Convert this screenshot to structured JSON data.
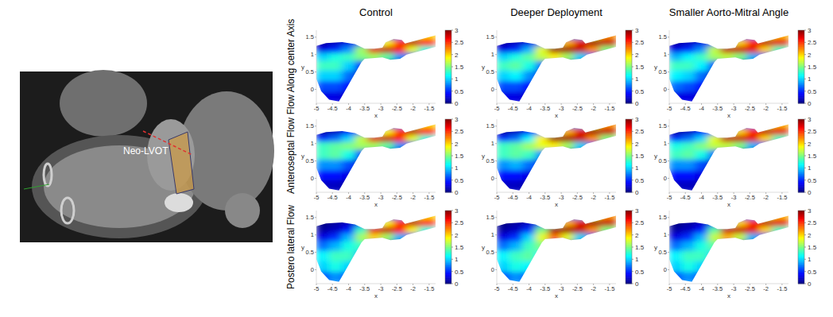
{
  "figure": {
    "image_label": "Neo-LVOT",
    "column_titles": [
      "Control",
      "Deeper Deployment",
      "Smaller Aorto-Mitral Angle"
    ],
    "row_titles": [
      "Flow Along center Axis",
      "Anteroseptal Flow",
      "Postero lateral Flow"
    ]
  },
  "chart_data": [
    {
      "type": "heatmap",
      "x_label": "x",
      "y_label": "y",
      "xlim": [
        -5,
        -1.3
      ],
      "ylim": [
        -0.4,
        1.7
      ],
      "xticks": [
        -5,
        -4.5,
        -4,
        -3.5,
        -3,
        -2.5,
        -2,
        -1.5
      ],
      "yticks": [
        0,
        0.5,
        1,
        1.5
      ],
      "x": [
        -4.8,
        -4.4,
        -4.0,
        -3.6,
        -3.2,
        -2.8,
        -2.4,
        -2.0,
        -1.6
      ],
      "y": [
        -0.2,
        0.1,
        0.4,
        0.7,
        0.95,
        1.15,
        1.35,
        1.55
      ],
      "cells": [
        [
          0.3,
          0.3,
          0.2,
          0.1,
          0,
          0,
          0,
          0,
          0
        ],
        [
          0.6,
          0.6,
          0.4,
          0.1,
          0,
          0,
          0,
          0,
          0
        ],
        [
          1.0,
          1.0,
          0.7,
          0.2,
          0,
          0,
          0,
          0,
          0
        ],
        [
          1.3,
          1.3,
          1.0,
          0.5,
          0.1,
          0.1,
          0.1,
          0,
          0
        ],
        [
          1.0,
          1.2,
          1.3,
          1.5,
          1.6,
          1.4,
          0.8,
          0.5,
          0.3
        ],
        [
          0.3,
          0.5,
          0.8,
          1.6,
          2.7,
          2.8,
          2.6,
          1.8,
          1.2
        ],
        [
          0.1,
          0.2,
          0.3,
          0.6,
          1.2,
          1.9,
          2.5,
          2.8,
          2.6
        ],
        [
          0,
          0,
          0,
          0,
          0.3,
          0.6,
          0.8,
          1.5,
          2.0
        ]
      ],
      "color_range": [
        0,
        3
      ],
      "color_ticks": [
        0,
        0.5,
        1,
        1.5,
        2,
        2.5,
        3
      ]
    },
    {
      "type": "heatmap",
      "x_label": "x",
      "y_label": "y",
      "xlim": [
        -5,
        -1.3
      ],
      "ylim": [
        -0.4,
        1.7
      ],
      "xticks": [
        -5,
        -4.5,
        -4,
        -3.5,
        -3,
        -2.5,
        -2,
        -1.5
      ],
      "yticks": [
        0,
        0.5,
        1,
        1.5
      ],
      "x": [
        -4.8,
        -4.4,
        -4.0,
        -3.6,
        -3.2,
        -2.8,
        -2.4,
        -2.0,
        -1.6
      ],
      "y": [
        -0.2,
        0.1,
        0.4,
        0.7,
        0.95,
        1.15,
        1.35,
        1.55
      ],
      "cells": [
        [
          0.3,
          0.3,
          0.2,
          0.1,
          0,
          0,
          0,
          0,
          0
        ],
        [
          0.6,
          0.6,
          0.4,
          0.1,
          0,
          0,
          0,
          0,
          0
        ],
        [
          1.0,
          1.1,
          0.8,
          0.3,
          0,
          0,
          0,
          0,
          0
        ],
        [
          1.3,
          1.4,
          1.2,
          0.7,
          0.2,
          0.1,
          0.1,
          0,
          0
        ],
        [
          1.0,
          1.2,
          1.4,
          1.7,
          1.9,
          1.6,
          1.0,
          0.6,
          0.3
        ],
        [
          0.3,
          0.5,
          0.9,
          1.8,
          2.9,
          2.9,
          2.8,
          2.2,
          1.5
        ],
        [
          0.1,
          0.2,
          0.3,
          0.7,
          1.4,
          2.1,
          2.7,
          2.9,
          2.8
        ],
        [
          0,
          0,
          0,
          0,
          0.3,
          0.7,
          0.9,
          1.7,
          2.2
        ]
      ],
      "color_range": [
        0,
        3
      ],
      "color_ticks": [
        0,
        0.5,
        1,
        1.5,
        2,
        2.5,
        3
      ]
    },
    {
      "type": "heatmap",
      "x_label": "x",
      "y_label": "y",
      "xlim": [
        -5,
        -1.3
      ],
      "ylim": [
        -0.4,
        1.7
      ],
      "xticks": [
        -5,
        -4.5,
        -4,
        -3.5,
        -3,
        -2.5,
        -2,
        -1.5
      ],
      "yticks": [
        0,
        0.5,
        1,
        1.5
      ],
      "x": [
        -4.8,
        -4.4,
        -4.0,
        -3.6,
        -3.2,
        -2.8,
        -2.4,
        -2.0,
        -1.6
      ],
      "y": [
        -0.2,
        0.1,
        0.4,
        0.7,
        0.95,
        1.15,
        1.35,
        1.55
      ],
      "cells": [
        [
          0.3,
          0.3,
          0.2,
          0.1,
          0,
          0,
          0,
          0,
          0
        ],
        [
          0.7,
          0.6,
          0.4,
          0.1,
          0,
          0,
          0,
          0,
          0
        ],
        [
          1.1,
          1.0,
          0.7,
          0.2,
          0,
          0,
          0,
          0,
          0
        ],
        [
          1.3,
          1.3,
          1.1,
          0.6,
          0.1,
          0.1,
          0.1,
          0,
          0
        ],
        [
          0.9,
          1.1,
          1.3,
          1.6,
          1.7,
          1.5,
          0.9,
          0.5,
          0.3
        ],
        [
          0.3,
          0.5,
          0.8,
          1.7,
          2.8,
          2.8,
          2.7,
          2.0,
          1.3
        ],
        [
          0.1,
          0.2,
          0.3,
          0.6,
          1.3,
          2.0,
          2.6,
          2.8,
          2.7
        ],
        [
          0,
          0,
          0,
          0,
          0.3,
          0.6,
          0.8,
          1.6,
          2.1
        ]
      ],
      "color_range": [
        0,
        3
      ],
      "color_ticks": [
        0,
        0.5,
        1,
        1.5,
        2,
        2.5,
        3
      ]
    },
    {
      "type": "heatmap",
      "x_label": "x",
      "y_label": "y",
      "xlim": [
        -5,
        -1.3
      ],
      "ylim": [
        -0.4,
        1.7
      ],
      "xticks": [
        -5,
        -4.5,
        -4,
        -3.5,
        -3,
        -2.5,
        -2,
        -1.5
      ],
      "yticks": [
        0,
        0.5,
        1,
        1.5
      ],
      "x": [
        -4.8,
        -4.4,
        -4.0,
        -3.6,
        -3.2,
        -2.8,
        -2.4,
        -2.0,
        -1.6
      ],
      "y": [
        -0.2,
        0.1,
        0.4,
        0.7,
        0.95,
        1.15,
        1.35,
        1.55
      ],
      "cells": [
        [
          0.2,
          0.2,
          0.1,
          0.1,
          0,
          0,
          0,
          0,
          0
        ],
        [
          0.4,
          0.4,
          0.3,
          0.1,
          0,
          0,
          0,
          0,
          0
        ],
        [
          0.8,
          0.8,
          0.6,
          0.2,
          0,
          0,
          0,
          0,
          0
        ],
        [
          1.3,
          1.4,
          1.2,
          0.6,
          0.1,
          0.1,
          0.1,
          0,
          0
        ],
        [
          1.3,
          1.4,
          1.5,
          1.6,
          1.6,
          1.4,
          0.8,
          0.5,
          0.3
        ],
        [
          0.5,
          0.7,
          1.0,
          1.7,
          2.7,
          2.8,
          2.6,
          1.8,
          1.2
        ],
        [
          0.1,
          0.2,
          0.4,
          0.7,
          1.2,
          1.9,
          2.5,
          2.8,
          2.6
        ],
        [
          0,
          0,
          0,
          0,
          0.3,
          0.6,
          0.8,
          1.5,
          2.0
        ]
      ],
      "color_range": [
        0,
        3
      ],
      "color_ticks": [
        0,
        0.5,
        1,
        1.5,
        2,
        2.5,
        3
      ]
    },
    {
      "type": "heatmap",
      "x_label": "x",
      "y_label": "y",
      "xlim": [
        -5,
        -1.3
      ],
      "ylim": [
        -0.4,
        1.7
      ],
      "xticks": [
        -5,
        -4.5,
        -4,
        -3.5,
        -3,
        -2.5,
        -2,
        -1.5
      ],
      "yticks": [
        0,
        0.5,
        1,
        1.5
      ],
      "x": [
        -4.8,
        -4.4,
        -4.0,
        -3.6,
        -3.2,
        -2.8,
        -2.4,
        -2.0,
        -1.6
      ],
      "y": [
        -0.2,
        0.1,
        0.4,
        0.7,
        0.95,
        1.15,
        1.35,
        1.55
      ],
      "cells": [
        [
          0.2,
          0.2,
          0.1,
          0.1,
          0,
          0,
          0,
          0,
          0
        ],
        [
          0.4,
          0.4,
          0.3,
          0.1,
          0,
          0,
          0,
          0,
          0
        ],
        [
          0.8,
          0.9,
          0.7,
          0.3,
          0,
          0,
          0,
          0,
          0
        ],
        [
          1.3,
          1.4,
          1.3,
          0.8,
          0.2,
          0.1,
          0.1,
          0,
          0
        ],
        [
          1.3,
          1.4,
          1.6,
          1.8,
          1.9,
          1.6,
          1.0,
          0.6,
          0.3
        ],
        [
          0.5,
          0.7,
          1.1,
          1.9,
          2.9,
          2.9,
          2.8,
          2.2,
          1.5
        ],
        [
          0.1,
          0.2,
          0.4,
          0.8,
          1.4,
          2.1,
          2.7,
          2.9,
          2.8
        ],
        [
          0,
          0,
          0,
          0,
          0.3,
          0.7,
          0.9,
          1.7,
          2.2
        ]
      ],
      "color_range": [
        0,
        3
      ],
      "color_ticks": [
        0,
        0.5,
        1,
        1.5,
        2,
        2.5,
        3
      ]
    },
    {
      "type": "heatmap",
      "x_label": "x",
      "y_label": "y",
      "xlim": [
        -5,
        -1.3
      ],
      "ylim": [
        -0.4,
        1.7
      ],
      "xticks": [
        -5,
        -4.5,
        -4,
        -3.5,
        -3,
        -2.5,
        -2,
        -1.5
      ],
      "yticks": [
        0,
        0.5,
        1,
        1.5
      ],
      "x": [
        -4.8,
        -4.4,
        -4.0,
        -3.6,
        -3.2,
        -2.8,
        -2.4,
        -2.0,
        -1.6
      ],
      "y": [
        -0.2,
        0.1,
        0.4,
        0.7,
        0.95,
        1.15,
        1.35,
        1.55
      ],
      "cells": [
        [
          0.2,
          0.2,
          0.1,
          0.1,
          0,
          0,
          0,
          0,
          0
        ],
        [
          0.4,
          0.4,
          0.3,
          0.1,
          0,
          0,
          0,
          0,
          0
        ],
        [
          0.8,
          0.8,
          0.6,
          0.2,
          0,
          0,
          0,
          0,
          0
        ],
        [
          1.3,
          1.4,
          1.2,
          0.7,
          0.1,
          0.1,
          0.1,
          0,
          0
        ],
        [
          1.2,
          1.3,
          1.5,
          1.7,
          1.7,
          1.5,
          0.9,
          0.5,
          0.3
        ],
        [
          0.5,
          0.7,
          1.0,
          1.8,
          2.8,
          2.8,
          2.7,
          2.0,
          1.3
        ],
        [
          0.1,
          0.2,
          0.4,
          0.7,
          1.3,
          2.0,
          2.6,
          2.8,
          2.7
        ],
        [
          0,
          0,
          0,
          0,
          0.3,
          0.6,
          0.8,
          1.6,
          2.1
        ]
      ],
      "color_range": [
        0,
        3
      ],
      "color_ticks": [
        0,
        0.5,
        1,
        1.5,
        2,
        2.5,
        3
      ]
    },
    {
      "type": "heatmap",
      "x_label": "x",
      "y_label": "y",
      "xlim": [
        -5,
        -1.3
      ],
      "ylim": [
        -0.4,
        1.7
      ],
      "xticks": [
        -5,
        -4.5,
        -4,
        -3.5,
        -3,
        -2.5,
        -2,
        -1.5
      ],
      "yticks": [
        0,
        0.5,
        1,
        1.5
      ],
      "x": [
        -4.8,
        -4.4,
        -4.0,
        -3.6,
        -3.2,
        -2.8,
        -2.4,
        -2.0,
        -1.6
      ],
      "y": [
        -0.2,
        0.1,
        0.4,
        0.7,
        0.95,
        1.15,
        1.35,
        1.55
      ],
      "cells": [
        [
          0.6,
          0.8,
          0.6,
          0.2,
          0,
          0,
          0,
          0,
          0
        ],
        [
          1.0,
          1.2,
          1.0,
          0.4,
          0,
          0,
          0,
          0,
          0
        ],
        [
          1.1,
          1.3,
          1.3,
          0.9,
          0,
          0,
          0,
          0,
          0
        ],
        [
          0.7,
          0.9,
          1.2,
          1.3,
          0.3,
          0.1,
          0.1,
          0,
          0
        ],
        [
          0.3,
          0.5,
          0.9,
          1.6,
          2.0,
          1.6,
          0.9,
          0.5,
          0.3
        ],
        [
          0.1,
          0.2,
          0.4,
          1.3,
          2.7,
          2.8,
          2.6,
          1.9,
          1.2
        ],
        [
          0,
          0.1,
          0.2,
          0.4,
          1.1,
          1.9,
          2.5,
          2.8,
          2.6
        ],
        [
          0,
          0,
          0,
          0,
          0.3,
          0.6,
          0.8,
          1.5,
          2.0
        ]
      ],
      "color_range": [
        0,
        3
      ],
      "color_ticks": [
        0,
        0.5,
        1,
        1.5,
        2,
        2.5,
        3
      ]
    },
    {
      "type": "heatmap",
      "x_label": "x",
      "y_label": "y",
      "xlim": [
        -5,
        -1.3
      ],
      "ylim": [
        -0.4,
        1.7
      ],
      "xticks": [
        -5,
        -4.5,
        -4,
        -3.5,
        -3,
        -2.5,
        -2,
        -1.5
      ],
      "yticks": [
        0,
        0.5,
        1,
        1.5
      ],
      "x": [
        -4.8,
        -4.4,
        -4.0,
        -3.6,
        -3.2,
        -2.8,
        -2.4,
        -2.0,
        -1.6
      ],
      "y": [
        -0.2,
        0.1,
        0.4,
        0.7,
        0.95,
        1.15,
        1.35,
        1.55
      ],
      "cells": [
        [
          0.6,
          0.8,
          0.6,
          0.2,
          0,
          0,
          0,
          0,
          0
        ],
        [
          1.0,
          1.2,
          1.1,
          0.5,
          0,
          0,
          0,
          0,
          0
        ],
        [
          1.1,
          1.3,
          1.4,
          1.1,
          0,
          0,
          0,
          0,
          0
        ],
        [
          0.7,
          0.9,
          1.3,
          1.5,
          0.4,
          0.1,
          0.1,
          0,
          0
        ],
        [
          0.3,
          0.5,
          1.0,
          1.8,
          2.3,
          1.8,
          1.0,
          0.6,
          0.3
        ],
        [
          0.1,
          0.2,
          0.5,
          1.5,
          2.9,
          2.9,
          2.8,
          2.2,
          1.5
        ],
        [
          0,
          0.1,
          0.2,
          0.5,
          1.3,
          2.1,
          2.7,
          2.9,
          2.8
        ],
        [
          0,
          0,
          0,
          0,
          0.3,
          0.7,
          0.9,
          1.7,
          2.2
        ]
      ],
      "color_range": [
        0,
        3
      ],
      "color_ticks": [
        0,
        0.5,
        1,
        1.5,
        2,
        2.5,
        3
      ]
    },
    {
      "type": "heatmap",
      "x_label": "x",
      "y_label": "y",
      "xlim": [
        -5,
        -1.3
      ],
      "ylim": [
        -0.4,
        1.7
      ],
      "xticks": [
        -5,
        -4.5,
        -4,
        -3.5,
        -3,
        -2.5,
        -2,
        -1.5
      ],
      "yticks": [
        0,
        0.5,
        1,
        1.5
      ],
      "x": [
        -4.8,
        -4.4,
        -4.0,
        -3.6,
        -3.2,
        -2.8,
        -2.4,
        -2.0,
        -1.6
      ],
      "y": [
        -0.2,
        0.1,
        0.4,
        0.7,
        0.95,
        1.15,
        1.35,
        1.55
      ],
      "cells": [
        [
          0.6,
          0.8,
          0.6,
          0.2,
          0,
          0,
          0,
          0,
          0
        ],
        [
          1.0,
          1.2,
          1.0,
          0.4,
          0,
          0,
          0,
          0,
          0
        ],
        [
          1.1,
          1.3,
          1.3,
          1.0,
          0,
          0,
          0,
          0,
          0
        ],
        [
          0.7,
          0.9,
          1.2,
          1.4,
          0.3,
          0.1,
          0.1,
          0,
          0
        ],
        [
          0.3,
          0.5,
          0.9,
          1.7,
          2.1,
          1.7,
          0.9,
          0.5,
          0.3
        ],
        [
          0.1,
          0.2,
          0.4,
          1.4,
          2.8,
          2.8,
          2.7,
          2.0,
          1.3
        ],
        [
          0,
          0.1,
          0.2,
          0.4,
          1.2,
          2.0,
          2.6,
          2.8,
          2.7
        ],
        [
          0,
          0,
          0,
          0,
          0.3,
          0.6,
          0.8,
          1.6,
          2.1
        ]
      ],
      "color_range": [
        0,
        3
      ],
      "color_ticks": [
        0,
        0.5,
        1,
        1.5,
        2,
        2.5,
        3
      ]
    }
  ]
}
